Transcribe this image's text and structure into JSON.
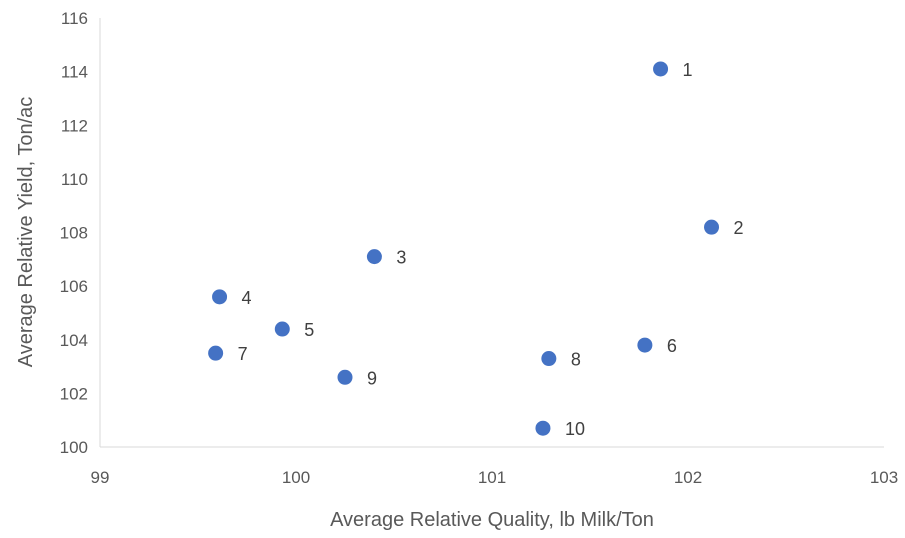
{
  "chart_data": {
    "type": "scatter",
    "title": "",
    "xlabel": "Average Relative Quality, lb Milk/Ton",
    "ylabel": "Average Relative Yield, Ton/ac",
    "xlim": [
      99,
      103
    ],
    "ylim": [
      100,
      116
    ],
    "xticks": [
      99,
      100,
      101,
      102,
      103
    ],
    "yticks": [
      100,
      102,
      104,
      106,
      108,
      110,
      112,
      114,
      116
    ],
    "grid": false,
    "legend": "none",
    "marker_color": "#4472C4",
    "points": [
      {
        "label": "1",
        "x": 101.86,
        "y": 114.1
      },
      {
        "label": "2",
        "x": 102.12,
        "y": 108.2
      },
      {
        "label": "3",
        "x": 100.4,
        "y": 107.1
      },
      {
        "label": "4",
        "x": 99.61,
        "y": 105.6
      },
      {
        "label": "5",
        "x": 99.93,
        "y": 104.4
      },
      {
        "label": "6",
        "x": 101.78,
        "y": 103.8
      },
      {
        "label": "7",
        "x": 99.59,
        "y": 103.5
      },
      {
        "label": "8",
        "x": 101.29,
        "y": 103.3
      },
      {
        "label": "9",
        "x": 100.25,
        "y": 102.6
      },
      {
        "label": "10",
        "x": 101.26,
        "y": 100.7
      }
    ]
  }
}
